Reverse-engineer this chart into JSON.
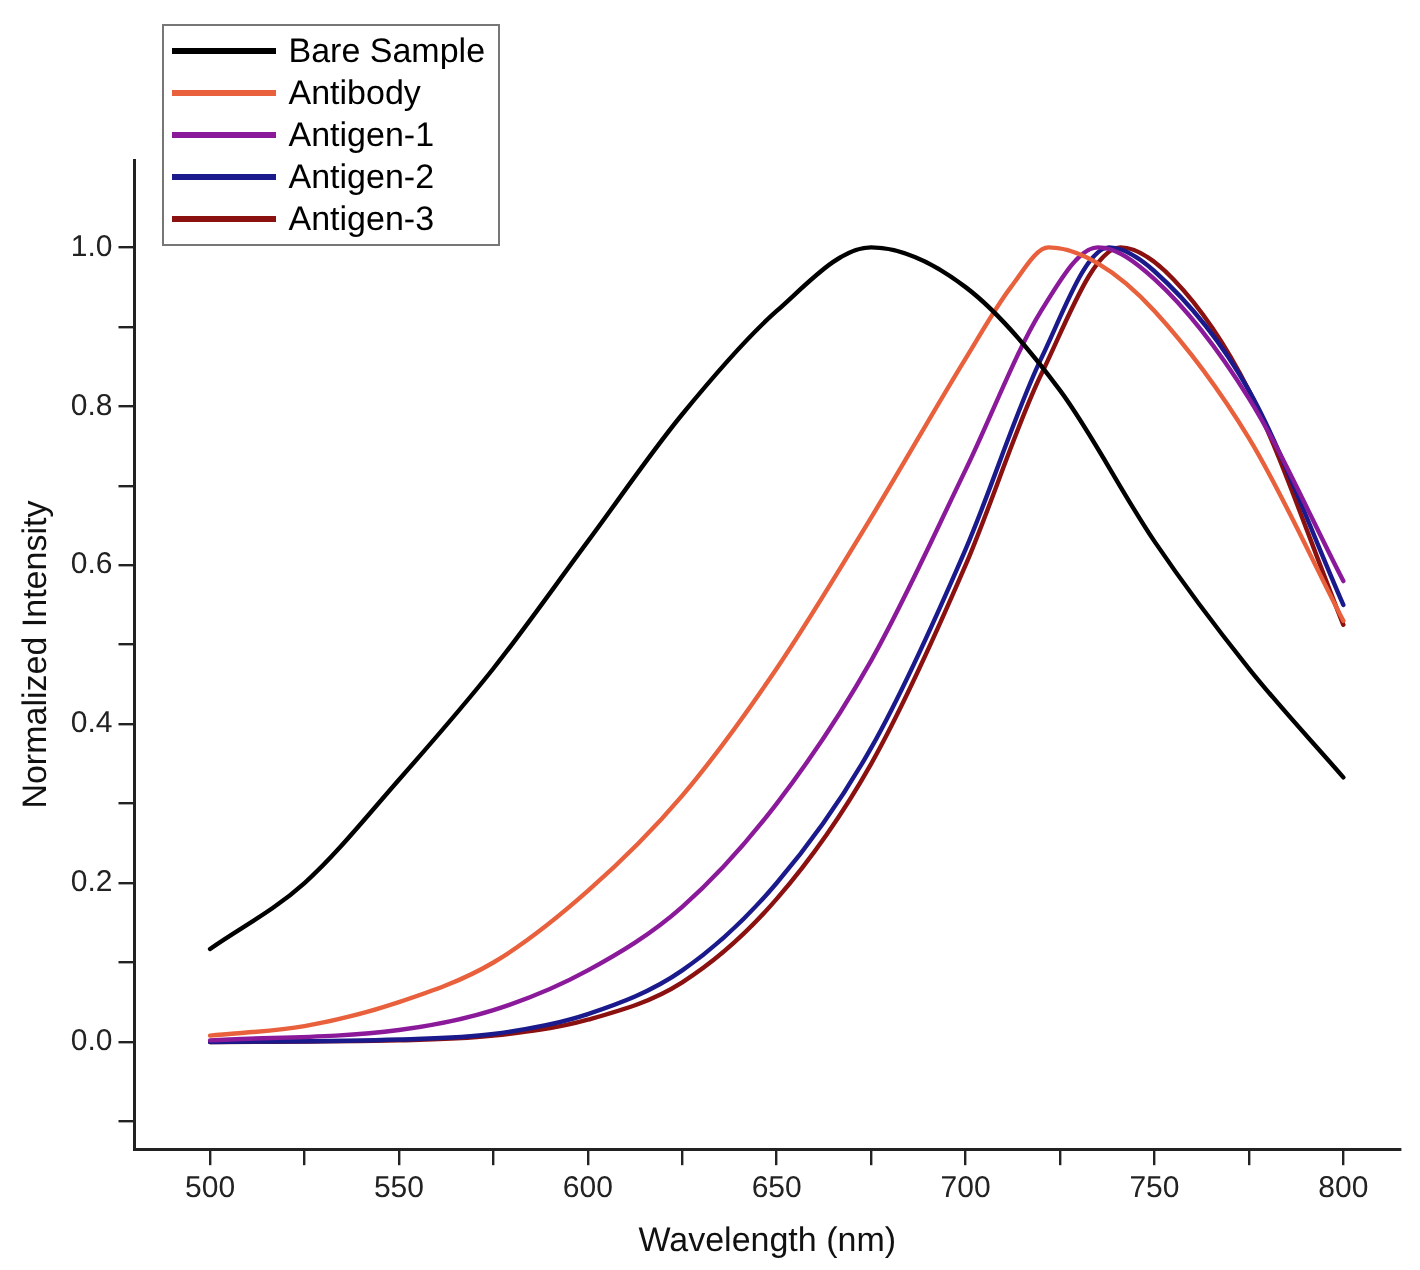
{
  "chart_data": {
    "type": "line",
    "xlabel": "Wavelength (nm)",
    "ylabel": "Normalized Intensity",
    "xlim": [
      480,
      815
    ],
    "ylim": [
      -0.135,
      1.11
    ],
    "xticks": [
      500,
      {
        "value": 525,
        "label": null
      },
      550,
      {
        "value": 575,
        "label": null
      },
      600,
      {
        "value": 625,
        "label": null
      },
      650,
      {
        "value": 675,
        "label": null
      },
      700,
      {
        "value": 725,
        "label": null
      },
      750,
      {
        "value": 775,
        "label": null
      },
      800
    ],
    "yticks": [
      {
        "value": -0.1,
        "label": null
      },
      "0.0",
      {
        "value": 0.1,
        "label": null
      },
      0.2,
      {
        "value": 0.3,
        "label": null
      },
      0.4,
      {
        "value": 0.5,
        "label": null
      },
      0.6,
      {
        "value": 0.7,
        "label": null
      },
      0.8,
      {
        "value": 0.9,
        "label": null
      },
      "1.0"
    ],
    "grid": false,
    "legend": "top left",
    "marker": "none",
    "line_style": "solid",
    "series": [
      {
        "name": "Bare Sample",
        "color": "#000000",
        "x": [
          500,
          525,
          550,
          575,
          600,
          625,
          650,
          675,
          700,
          725,
          750,
          775,
          800
        ],
        "values": [
          0.117,
          0.2,
          0.33,
          0.47,
          0.63,
          0.79,
          0.92,
          1.0,
          0.95,
          0.82,
          0.63,
          0.47,
          0.333
        ]
      },
      {
        "name": "Antibody",
        "color": "#e8603c",
        "x": [
          500,
          525,
          550,
          575,
          600,
          625,
          650,
          675,
          700,
          712,
          722,
          735,
          750,
          775,
          800
        ],
        "values": [
          0.008,
          0.02,
          0.05,
          0.1,
          0.19,
          0.31,
          0.47,
          0.66,
          0.86,
          0.95,
          1.0,
          0.98,
          0.92,
          0.76,
          0.53
        ]
      },
      {
        "name": "Antigen-1",
        "color": "#8b1a9b",
        "x": [
          500,
          550,
          575,
          600,
          625,
          650,
          675,
          700,
          720,
          735,
          750,
          775,
          800
        ],
        "values": [
          0.002,
          0.015,
          0.04,
          0.09,
          0.17,
          0.3,
          0.48,
          0.72,
          0.92,
          1.0,
          0.96,
          0.81,
          0.58
        ]
      },
      {
        "name": "Antigen-2",
        "color": "#1a1a8c",
        "x": [
          500,
          550,
          575,
          600,
          625,
          650,
          675,
          700,
          720,
          738,
          750,
          775,
          800
        ],
        "values": [
          0,
          0.003,
          0.01,
          0.035,
          0.09,
          0.2,
          0.37,
          0.62,
          0.86,
          1.0,
          0.97,
          0.82,
          0.55
        ]
      },
      {
        "name": "Antigen-3",
        "color": "#8b1010",
        "x": [
          500,
          550,
          575,
          600,
          625,
          650,
          675,
          700,
          720,
          741,
          755,
          775,
          800
        ],
        "values": [
          0,
          0.002,
          0.008,
          0.028,
          0.075,
          0.18,
          0.35,
          0.6,
          0.84,
          1.0,
          0.96,
          0.82,
          0.525
        ]
      }
    ]
  }
}
